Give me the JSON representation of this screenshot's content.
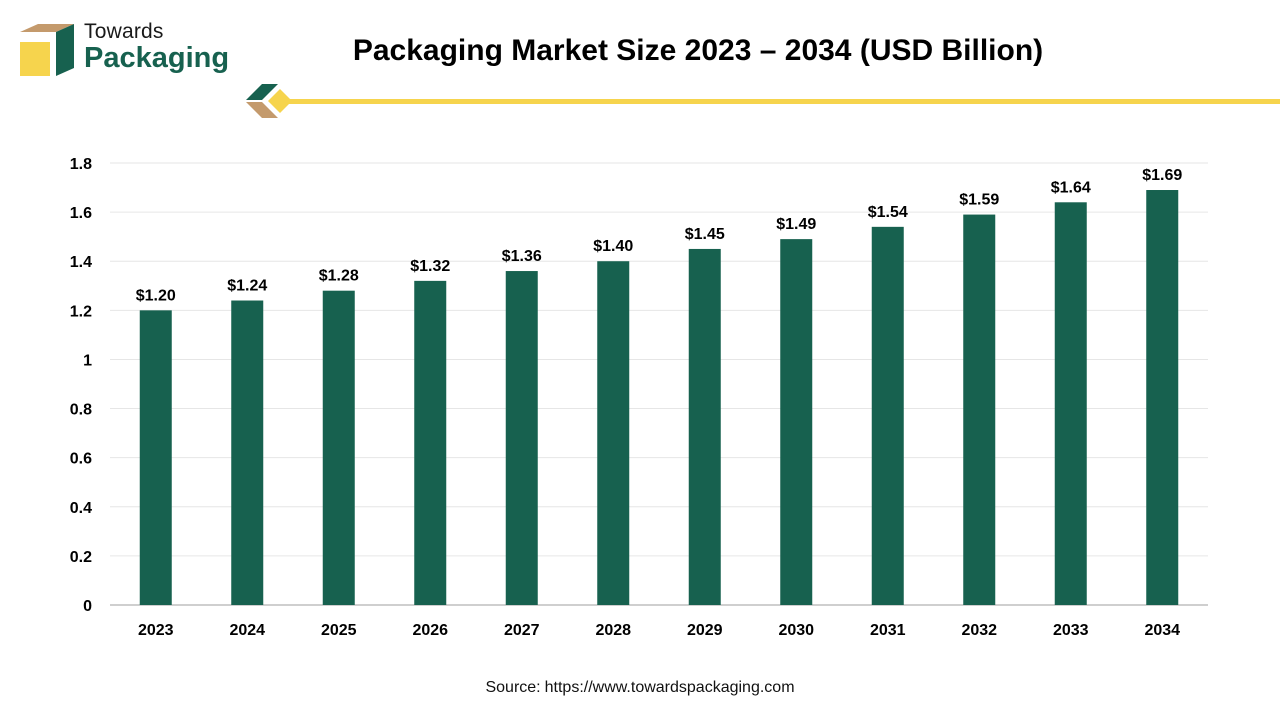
{
  "brand": {
    "line1": "Towards",
    "line2": "Packaging",
    "color": "#17614f",
    "accent": "#f6d44d",
    "box_color": "#c49a6c"
  },
  "source": {
    "label": "Source:",
    "url": "https://www.towardspackaging.com"
  },
  "chart_data": {
    "type": "bar",
    "title": "Packaging Market Size 2023 – 2034 (USD Billion)",
    "categories": [
      "2023",
      "2024",
      "2025",
      "2026",
      "2027",
      "2028",
      "2029",
      "2030",
      "2031",
      "2032",
      "2033",
      "2034"
    ],
    "values": [
      1.2,
      1.24,
      1.28,
      1.32,
      1.36,
      1.4,
      1.45,
      1.49,
      1.54,
      1.59,
      1.64,
      1.69
    ],
    "value_labels": [
      "$1.20",
      "$1.24",
      "$1.28",
      "$1.32",
      "$1.36",
      "$1.40",
      "$1.45",
      "$1.49",
      "$1.54",
      "$1.59",
      "$1.64",
      "$1.69"
    ],
    "yticks": [
      "0",
      "0.2",
      "0.4",
      "0.6",
      "0.8",
      "1",
      "1.2",
      "1.4",
      "1.6",
      "1.8"
    ],
    "ylim": [
      0,
      1.8
    ],
    "xlabel": "",
    "ylabel": "",
    "grid": true,
    "bar_color": "#17614f"
  }
}
